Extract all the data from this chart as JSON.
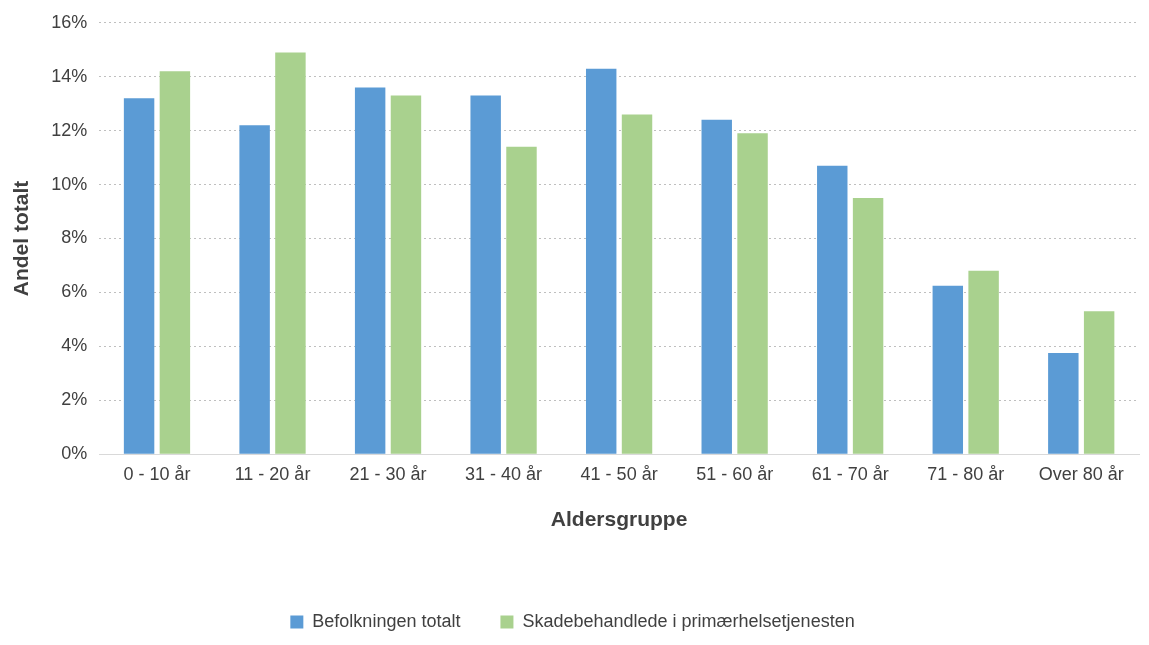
{
  "chart_data": {
    "type": "bar",
    "xlabel": "Aldersgruppe",
    "ylabel": "Andel totalt",
    "categories": [
      "0 - 10 år",
      "11 - 20 år",
      "21 - 30 år",
      "31 - 40 år",
      "41 - 50 år",
      "51 - 60 år",
      "61 - 70 år",
      "71 - 80 år",
      "Over 80 år"
    ],
    "series": [
      {
        "name": "Befolkningen totalt",
        "color": "#5b9bd5",
        "values": [
          13.2,
          12.2,
          13.6,
          13.3,
          14.3,
          12.4,
          10.7,
          6.25,
          3.75
        ]
      },
      {
        "name": "Skadebehandlede i primærhelsetjenesten",
        "color": "#a9d18e",
        "values": [
          14.2,
          14.9,
          13.3,
          11.4,
          12.6,
          11.9,
          9.5,
          6.8,
          5.3
        ]
      }
    ],
    "ylim": [
      0,
      16
    ],
    "yticks": [
      {
        "value": 0,
        "label": "0%"
      },
      {
        "value": 2,
        "label": "2%"
      },
      {
        "value": 4,
        "label": "4%"
      },
      {
        "value": 6,
        "label": "6%"
      },
      {
        "value": 8,
        "label": "8%"
      },
      {
        "value": 10,
        "label": "10%"
      },
      {
        "value": 12,
        "label": "12%"
      },
      {
        "value": 14,
        "label": "14%"
      },
      {
        "value": 16,
        "label": "16%"
      }
    ],
    "grid": "y",
    "legend": "bottom"
  }
}
